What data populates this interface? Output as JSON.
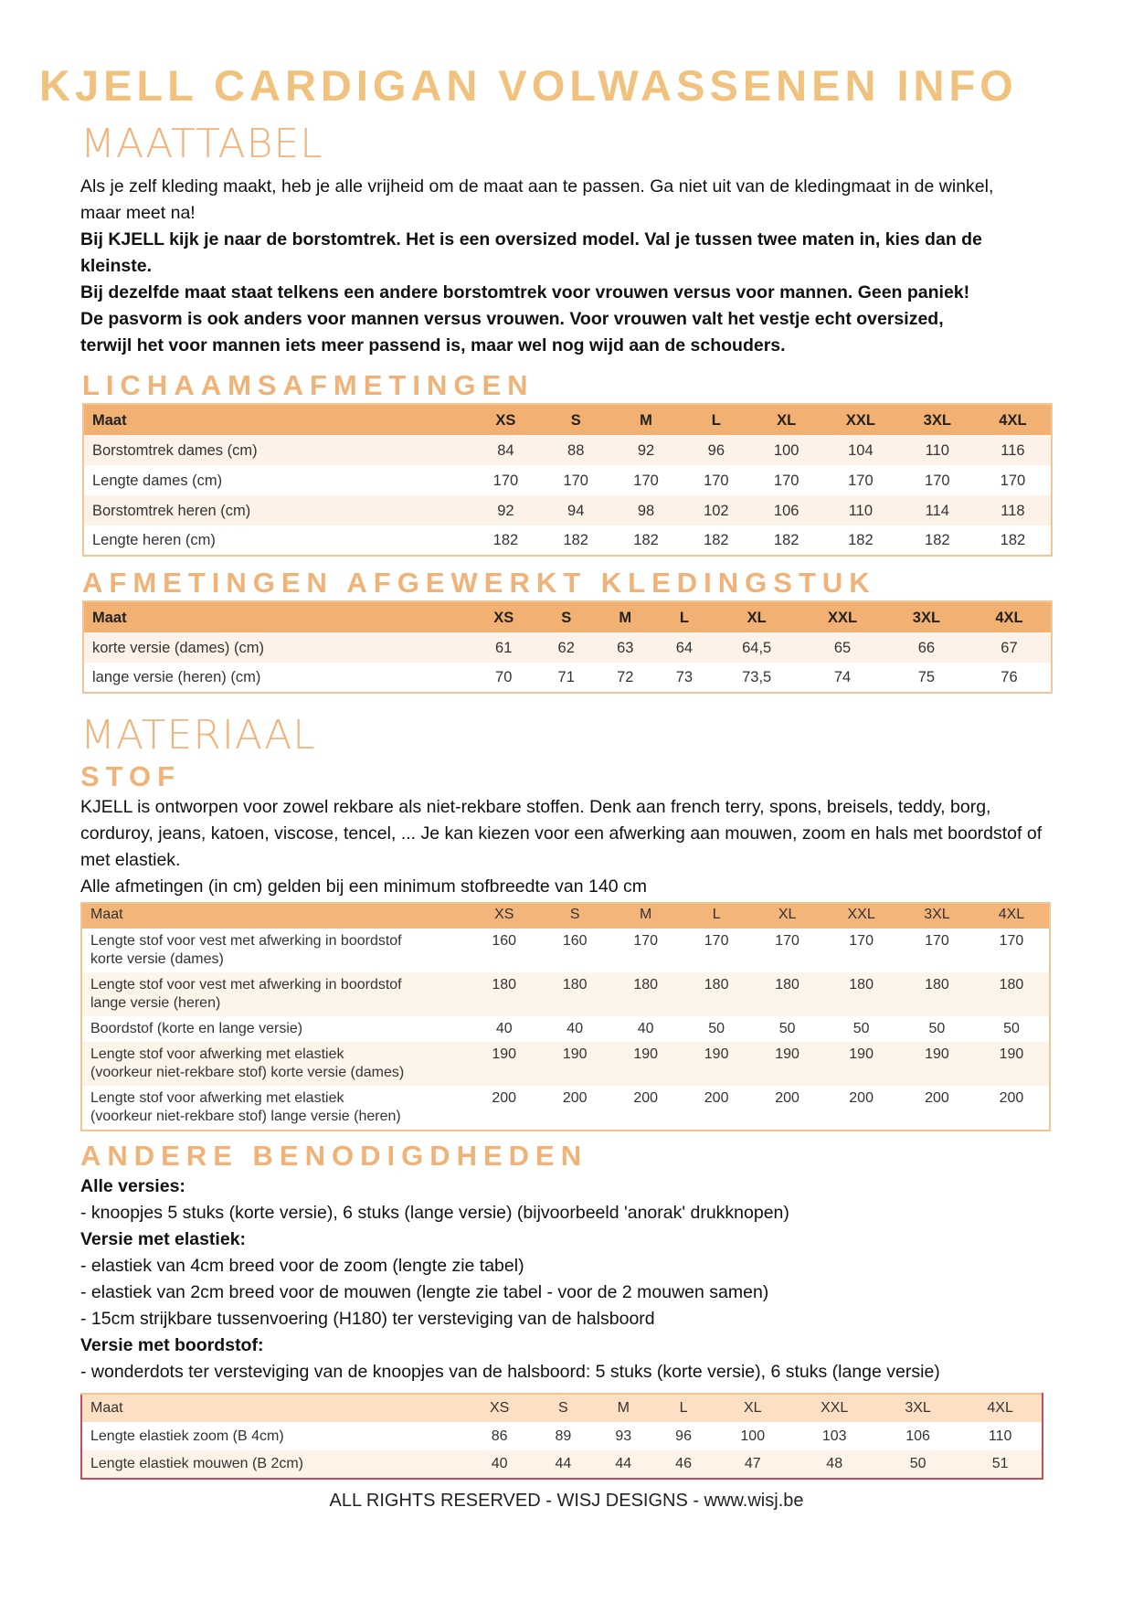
{
  "title": "KJELL CARDIGAN VOLWASSENEN INFO",
  "maattabel": {
    "heading": "MAATTABEL",
    "p1": "Als je zelf kleding maakt, heb je alle vrijheid om de maat aan te passen. Ga niet uit van de kledingmaat in de winkel, maar meet na!",
    "p2": "Bij KJELL kijk je naar de borstomtrek. Het is een oversized model. Val je tussen twee maten in, kies dan de kleinste.",
    "p3": "Bij dezelfde maat staat telkens een andere borstomtrek voor vrouwen versus voor mannen. Geen paniek! De pasvorm is ook anders voor mannen versus vrouwen. Voor vrouwen valt het vestje echt oversized, terwijl het voor mannen iets meer passend is, maar wel nog wijd aan de schouders."
  },
  "lichaam": {
    "heading": "LICHAAMSAFMETINGEN",
    "header": [
      "Maat",
      "XS",
      "S",
      "M",
      "L",
      "XL",
      "XXL",
      "3XL",
      "4XL"
    ],
    "rows": [
      [
        "Borstomtrek dames (cm)",
        "84",
        "88",
        "92",
        "96",
        "100",
        "104",
        "110",
        "116"
      ],
      [
        "Lengte dames (cm)",
        "170",
        "170",
        "170",
        "170",
        "170",
        "170",
        "170",
        "170"
      ],
      [
        "Borstomtrek heren (cm)",
        "92",
        "94",
        "98",
        "102",
        "106",
        "110",
        "114",
        "118"
      ],
      [
        "Lengte heren (cm)",
        "182",
        "182",
        "182",
        "182",
        "182",
        "182",
        "182",
        "182"
      ]
    ]
  },
  "afgewerkt": {
    "heading": "AFMETINGEN AFGEWERKT KLEDINGSTUK",
    "header": [
      "Maat",
      "XS",
      "S",
      "M",
      "L",
      "XL",
      "XXL",
      "3XL",
      "4XL"
    ],
    "rows": [
      [
        "korte versie (dames) (cm)",
        "61",
        "62",
        "63",
        "64",
        "64,5",
        "65",
        "66",
        "67"
      ],
      [
        "lange versie (heren) (cm)",
        "70",
        "71",
        "72",
        "73",
        "73,5",
        "74",
        "75",
        "76"
      ]
    ]
  },
  "materiaal": {
    "heading": "MATERIAAL",
    "stof_heading": "STOF",
    "p1": "KJELL is ontworpen voor zowel rekbare als niet-rekbare stoffen. Denk aan french terry, spons, breisels, teddy, borg, corduroy, jeans, katoen, viscose, tencel, ... Je kan kiezen voor een afwerking aan mouwen, zoom en hals met boordstof of met elastiek.",
    "p2": "Alle afmetingen (in cm) gelden bij een minimum stofbreedte van 140 cm",
    "header": [
      "Maat",
      "XS",
      "S",
      "M",
      "L",
      "XL",
      "XXL",
      "3XL",
      "4XL"
    ],
    "rows": [
      [
        [
          "Lengte stof voor vest met afwerking in boordstof",
          "korte versie (dames)"
        ],
        "160",
        "160",
        "170",
        "170",
        "170",
        "170",
        "170",
        "170"
      ],
      [
        [
          "Lengte stof voor vest met afwerking in boordstof",
          "lange versie (heren)"
        ],
        "180",
        "180",
        "180",
        "180",
        "180",
        "180",
        "180",
        "180"
      ],
      [
        [
          "Boordstof (korte en lange versie)",
          ""
        ],
        "40",
        "40",
        "40",
        "50",
        "50",
        "50",
        "50",
        "50"
      ],
      [
        [
          "Lengte stof voor afwerking met elastiek",
          "(voorkeur niet-rekbare stof) korte versie (dames)"
        ],
        "190",
        "190",
        "190",
        "190",
        "190",
        "190",
        "190",
        "190"
      ],
      [
        [
          "Lengte stof voor afwerking met elastiek",
          "(voorkeur niet-rekbare stof) lange versie (heren)"
        ],
        "200",
        "200",
        "200",
        "200",
        "200",
        "200",
        "200",
        "200"
      ]
    ]
  },
  "andere": {
    "heading": "ANDERE BENODIGDHEDEN",
    "lines": [
      {
        "text": "Alle versies:",
        "bold": true
      },
      {
        "text": "- knoopjes 5 stuks (korte versie), 6 stuks (lange versie) (bijvoorbeeld 'anorak' drukknopen)",
        "bold": false
      },
      {
        "text": "Versie met elastiek:",
        "bold": true
      },
      {
        "text": "- elastiek van 4cm breed voor de zoom (lengte zie tabel)",
        "bold": false
      },
      {
        "text": "- elastiek van 2cm breed voor de mouwen (lengte zie tabel - voor de 2 mouwen samen)",
        "bold": false
      },
      {
        "text": "- 15cm strijkbare tussenvoering (H180) ter versteviging van de halsboord",
        "bold": false
      },
      {
        "text": "Versie met boordstof:",
        "bold": true
      },
      {
        "text": "- wonderdots ter versteviging van de knoopjes van de halsboord: 5 stuks (korte versie), 6 stuks (lange versie)",
        "bold": false
      }
    ],
    "header": [
      "Maat",
      "XS",
      "S",
      "M",
      "L",
      "XL",
      "XXL",
      "3XL",
      "4XL"
    ],
    "rows": [
      [
        "Lengte elastiek zoom (B 4cm)",
        "86",
        "89",
        "93",
        "96",
        "100",
        "103",
        "106",
        "110"
      ],
      [
        "Lengte elastiek mouwen (B 2cm)",
        "40",
        "44",
        "44",
        "46",
        "47",
        "48",
        "50",
        "51"
      ]
    ]
  },
  "footer": "ALL RIGHTS RESERVED - WISJ DESIGNS - www.wisj.be",
  "colors": {
    "accent": "#f0b277",
    "table_header": "#f2b173",
    "row_alt": "#fdf2e8",
    "last_table_border": "#c94a5a"
  }
}
